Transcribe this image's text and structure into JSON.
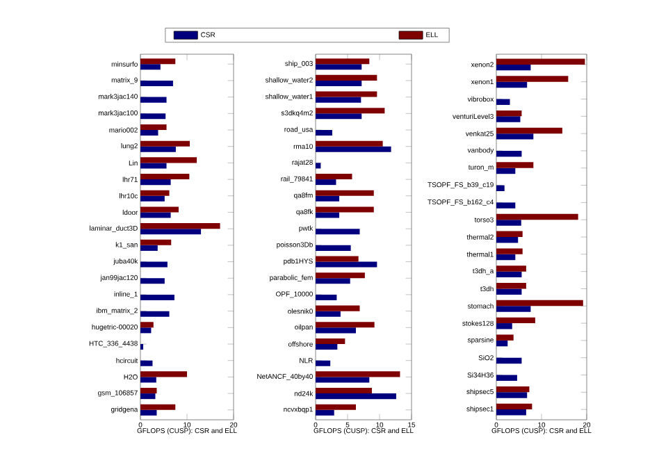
{
  "chart_data": [
    {
      "type": "bar",
      "orientation": "horizontal",
      "xlabel": "GFLOPS (CUSP): CSR and ELL",
      "legend": "top",
      "xlim": [
        0,
        20
      ],
      "xticks": [
        0,
        10,
        20
      ],
      "categories": [
        "minsurfo",
        "matrix_9",
        "mark3jac140",
        "mark3jac100",
        "mario002",
        "lung2",
        "Lin",
        "lhr71",
        "lhr10c",
        "ldoor",
        "laminar_duct3D",
        "k1_san",
        "juba40k",
        "jan99jac120",
        "inline_1",
        "ibm_matrix_2",
        "hugetric-00020",
        "HTC_336_4438",
        "hcircuit",
        "H2O",
        "gsm_106857",
        "gridgena"
      ],
      "series": [
        {
          "name": "CSR",
          "color": "#00007f",
          "values": [
            4.3,
            7.0,
            5.6,
            5.4,
            3.8,
            7.6,
            5.6,
            6.5,
            5.2,
            6.5,
            13.0,
            3.7,
            5.8,
            5.2,
            7.3,
            6.2,
            2.3,
            0.6,
            2.6,
            3.4,
            3.2,
            3.5
          ]
        },
        {
          "name": "ELL",
          "color": "#7f0000",
          "values": [
            7.5,
            null,
            null,
            null,
            5.6,
            10.6,
            12.1,
            10.5,
            6.2,
            8.2,
            17.1,
            6.6,
            null,
            null,
            null,
            null,
            2.8,
            null,
            null,
            10.0,
            3.5,
            7.5
          ]
        }
      ]
    },
    {
      "type": "bar",
      "orientation": "horizontal",
      "xlabel": "GFLOPS (CUSP): CSR and ELL",
      "xlim": [
        0,
        15
      ],
      "xticks": [
        0,
        5,
        10,
        15
      ],
      "categories": [
        "ship_003",
        "shallow_water2",
        "shallow_water1",
        "s3dkq4m2",
        "road_usa",
        "rma10",
        "rajat28",
        "rail_79841",
        "qa8fm",
        "qa8fk",
        "pwtk",
        "poisson3Db",
        "pdb1HYS",
        "parabolic_fem",
        "OPF_10000",
        "olesnik0",
        "oilpan",
        "offshore",
        "NLR",
        "NetANCF_40by40",
        "nd24k",
        "ncvxbqp1"
      ],
      "series": [
        {
          "color": "#00007f",
          "values": [
            7.2,
            7.2,
            7.1,
            7.2,
            2.6,
            11.8,
            0.8,
            3.2,
            3.7,
            3.7,
            6.9,
            5.5,
            9.6,
            5.4,
            3.3,
            3.9,
            6.3,
            3.4,
            2.3,
            8.4,
            12.6,
            2.9
          ]
        },
        {
          "color": "#7f0000",
          "values": [
            8.4,
            9.6,
            9.6,
            10.8,
            null,
            10.5,
            null,
            5.7,
            9.1,
            9.1,
            null,
            null,
            6.7,
            7.7,
            null,
            6.9,
            9.2,
            4.6,
            null,
            13.2,
            8.8,
            6.3
          ]
        }
      ]
    },
    {
      "type": "bar",
      "orientation": "horizontal",
      "xlabel": "GFLOPS (CUSP): CSR and ELL",
      "xlim": [
        0,
        20
      ],
      "xticks": [
        0,
        10,
        20
      ],
      "categories": [
        "xenon2",
        "xenon1",
        "vibrobox",
        "venturiLevel3",
        "venkat25",
        "vanbody",
        "turon_m",
        "TSOPF_FS_b39_c19",
        "TSOPF_FS_b162_c4",
        "torso3",
        "thermal2",
        "thermal1",
        "t3dh_a",
        "t3dh",
        "stomach",
        "stokes128",
        "sparsine",
        "SiO2",
        "Si34H36",
        "shipsec5",
        "shipsec1"
      ],
      "series": [
        {
          "color": "#00007f",
          "values": [
            7.6,
            6.8,
            3.0,
            5.3,
            8.2,
            5.6,
            4.2,
            1.8,
            4.2,
            5.5,
            4.8,
            4.2,
            5.6,
            5.6,
            7.6,
            3.5,
            2.5,
            5.6,
            4.6,
            6.8,
            6.6
          ]
        },
        {
          "color": "#7f0000",
          "values": [
            19.6,
            15.9,
            null,
            5.6,
            14.6,
            null,
            8.2,
            null,
            null,
            18.1,
            5.8,
            5.8,
            6.6,
            6.6,
            19.2,
            8.6,
            3.8,
            null,
            null,
            7.3,
            7.9
          ]
        }
      ]
    }
  ]
}
